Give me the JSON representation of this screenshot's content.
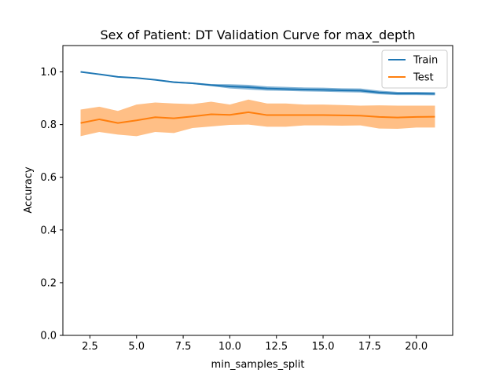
{
  "chart_data": {
    "type": "line",
    "title": "Sex of Patient: DT Validation Curve for max_depth",
    "xlabel": "min_samples_split",
    "ylabel": "Accuracy",
    "xlim": [
      1.05,
      21.95
    ],
    "ylim": [
      0.0,
      1.1
    ],
    "xticks": [
      2.5,
      5.0,
      7.5,
      10.0,
      12.5,
      15.0,
      17.5,
      20.0
    ],
    "xtick_labels": [
      "2.5",
      "5.0",
      "7.5",
      "10.0",
      "12.5",
      "15.0",
      "17.5",
      "20.0"
    ],
    "yticks": [
      0.0,
      0.2,
      0.4,
      0.6,
      0.8,
      1.0
    ],
    "ytick_labels": [
      "0.0",
      "0.2",
      "0.4",
      "0.6",
      "0.8",
      "1.0"
    ],
    "legend_position": "top-right",
    "x": [
      2,
      3,
      4,
      5,
      6,
      7,
      8,
      9,
      10,
      11,
      12,
      13,
      14,
      15,
      16,
      17,
      18,
      19,
      20,
      21
    ],
    "series": [
      {
        "name": "Train",
        "color": "#1f77b4",
        "values": [
          1.0,
          0.991,
          0.981,
          0.977,
          0.97,
          0.961,
          0.957,
          0.95,
          0.945,
          0.942,
          0.937,
          0.935,
          0.933,
          0.932,
          0.93,
          0.929,
          0.922,
          0.918,
          0.918,
          0.917
        ],
        "lower": [
          1.0,
          0.99,
          0.98,
          0.975,
          0.968,
          0.958,
          0.954,
          0.946,
          0.937,
          0.933,
          0.929,
          0.928,
          0.926,
          0.925,
          0.923,
          0.922,
          0.915,
          0.912,
          0.912,
          0.911
        ],
        "upper": [
          1.0,
          0.992,
          0.983,
          0.979,
          0.972,
          0.964,
          0.96,
          0.954,
          0.953,
          0.951,
          0.945,
          0.943,
          0.941,
          0.94,
          0.938,
          0.937,
          0.929,
          0.924,
          0.924,
          0.923
        ]
      },
      {
        "name": "Test",
        "color": "#ff7f0e",
        "values": [
          0.806,
          0.82,
          0.806,
          0.816,
          0.828,
          0.824,
          0.831,
          0.839,
          0.837,
          0.847,
          0.836,
          0.836,
          0.836,
          0.836,
          0.835,
          0.834,
          0.829,
          0.827,
          0.829,
          0.83
        ],
        "lower": [
          0.756,
          0.772,
          0.762,
          0.756,
          0.772,
          0.768,
          0.787,
          0.793,
          0.799,
          0.8,
          0.792,
          0.792,
          0.797,
          0.797,
          0.796,
          0.797,
          0.785,
          0.784,
          0.789,
          0.789
        ],
        "upper": [
          0.857,
          0.868,
          0.852,
          0.876,
          0.884,
          0.88,
          0.878,
          0.887,
          0.876,
          0.895,
          0.88,
          0.88,
          0.876,
          0.876,
          0.874,
          0.872,
          0.873,
          0.872,
          0.872,
          0.872
        ]
      }
    ]
  }
}
